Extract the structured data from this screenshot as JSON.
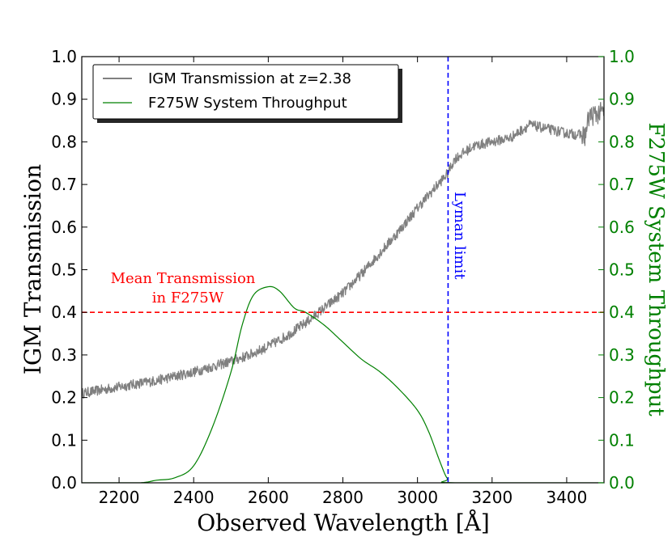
{
  "chart_data": {
    "type": "line",
    "xlabel": "Observed Wavelength [Å]",
    "ylabel_left": "IGM Transmission",
    "ylabel_right": "F275W System Throughput",
    "xlim": [
      2100,
      3500
    ],
    "ylim_left": [
      0.0,
      1.0
    ],
    "ylim_right": [
      0.0,
      1.0
    ],
    "x_ticks": [
      "2200",
      "2400",
      "2600",
      "2800",
      "3000",
      "3200",
      "3400"
    ],
    "y_ticks_left": [
      "0.0",
      "0.1",
      "0.2",
      "0.3",
      "0.4",
      "0.5",
      "0.6",
      "0.7",
      "0.8",
      "0.9",
      "1.0"
    ],
    "y_ticks_right": [
      "0.0",
      "0.1",
      "0.2",
      "0.3",
      "0.4",
      "0.5",
      "0.6",
      "0.7",
      "0.8",
      "0.9",
      "1.0"
    ],
    "legend": {
      "location": "upper-left",
      "entries": [
        "IGM Transmission at z=2.38",
        "F275W System Throughput"
      ]
    },
    "series": [
      {
        "name": "IGM Transmission at z=2.38",
        "color": "#808080",
        "axis": "left",
        "x": [
          2100,
          2200,
          2300,
          2400,
          2500,
          2550,
          2600,
          2650,
          2700,
          2750,
          2800,
          2850,
          2900,
          2950,
          3000,
          3050,
          3080,
          3100,
          3150,
          3200,
          3250,
          3300,
          3350,
          3400,
          3450,
          3460,
          3500
        ],
        "y": [
          0.21,
          0.225,
          0.24,
          0.26,
          0.285,
          0.3,
          0.32,
          0.345,
          0.375,
          0.41,
          0.445,
          0.49,
          0.54,
          0.59,
          0.645,
          0.695,
          0.725,
          0.76,
          0.79,
          0.8,
          0.81,
          0.84,
          0.83,
          0.82,
          0.815,
          0.86,
          0.87
        ]
      },
      {
        "name": "F275W System Throughput",
        "color": "#008000",
        "axis": "right",
        "x": [
          2100,
          2250,
          2300,
          2350,
          2400,
          2450,
          2500,
          2530,
          2560,
          2600,
          2630,
          2670,
          2700,
          2750,
          2800,
          2850,
          2900,
          2950,
          3000,
          3030,
          3060,
          3080,
          3100,
          3500
        ],
        "y": [
          0.0,
          0.0,
          0.006,
          0.012,
          0.04,
          0.13,
          0.26,
          0.37,
          0.44,
          0.46,
          0.45,
          0.41,
          0.4,
          0.37,
          0.33,
          0.29,
          0.26,
          0.22,
          0.17,
          0.12,
          0.05,
          0.01,
          0.0,
          0.0
        ]
      }
    ],
    "reference_lines": [
      {
        "orientation": "horizontal",
        "y": 0.4,
        "color": "#ff0000",
        "style": "dashed"
      },
      {
        "orientation": "vertical",
        "x": 3082,
        "color": "#0000ff",
        "style": "dashed"
      }
    ],
    "annotations": [
      {
        "text_line1": "Mean Transmission",
        "text_line2": "in F275W",
        "color": "#ff0000",
        "x": 2520,
        "y": 0.48
      },
      {
        "text": "Lyman limit",
        "color": "#0000ff",
        "x": 3082,
        "y": 0.6,
        "rotation": 90
      }
    ]
  }
}
